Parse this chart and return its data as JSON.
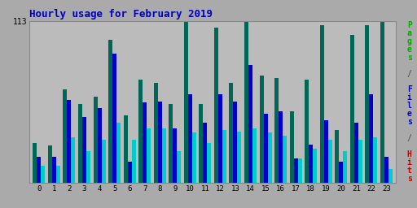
{
  "title": "Hourly usage for February 2019",
  "hours": [
    0,
    1,
    2,
    3,
    4,
    5,
    6,
    7,
    8,
    9,
    10,
    11,
    12,
    13,
    14,
    15,
    16,
    17,
    18,
    19,
    20,
    21,
    22,
    23
  ],
  "hits": [
    28,
    26,
    65,
    55,
    60,
    100,
    47,
    72,
    70,
    55,
    113,
    55,
    108,
    70,
    113,
    75,
    73,
    50,
    72,
    110,
    37,
    103,
    110,
    112
  ],
  "files": [
    18,
    18,
    58,
    46,
    52,
    90,
    15,
    56,
    57,
    38,
    62,
    42,
    62,
    57,
    82,
    48,
    50,
    17,
    27,
    44,
    15,
    42,
    62,
    18
  ],
  "pages": [
    12,
    12,
    32,
    22,
    30,
    42,
    30,
    38,
    38,
    22,
    35,
    28,
    37,
    36,
    38,
    35,
    33,
    17,
    24,
    30,
    22,
    30,
    32,
    10
  ],
  "color_hits": "#006655",
  "color_files": "#0000cc",
  "color_pages": "#00cccc",
  "bg_color": "#aaaaaa",
  "plot_bg": "#bbbbbb",
  "title_color": "#0000bb",
  "ylim": [
    0,
    113
  ],
  "ytick_label": "113",
  "grid_color": "#888888",
  "border_color": "#888888",
  "pages_label_color": "#00aa00",
  "files_label_color": "#0000cc",
  "hits_label_color": "#cc0000"
}
